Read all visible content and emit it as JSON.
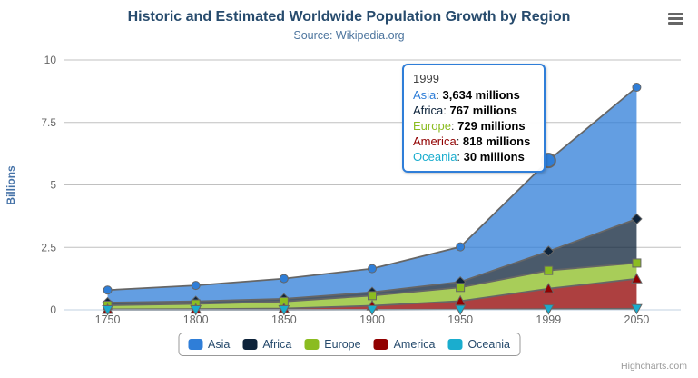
{
  "chart_data": {
    "type": "area",
    "stacking": "normal",
    "title": "Historic and Estimated Worldwide Population Growth by Region",
    "subtitle": "Source: Wikipedia.org",
    "xlabel": "",
    "ylabel": "Billions",
    "unit": "millions",
    "categories": [
      "1750",
      "1800",
      "1850",
      "1900",
      "1950",
      "1999",
      "2050"
    ],
    "ylim": [
      0,
      10
    ],
    "yticks": [
      0,
      2.5,
      5,
      7.5,
      10
    ],
    "ytick_labels": [
      "0",
      "2.5",
      "5",
      "7.5",
      "10"
    ],
    "grid": true,
    "legend_position": "bottom",
    "series": [
      {
        "name": "Asia",
        "color": "#2f7ed8",
        "marker": "circle",
        "values": [
          502,
          635,
          809,
          947,
          1402,
          3634,
          5268
        ]
      },
      {
        "name": "Africa",
        "color": "#0d233a",
        "marker": "diamond",
        "values": [
          106,
          107,
          111,
          133,
          221,
          767,
          1766
        ]
      },
      {
        "name": "Europe",
        "color": "#8bbc21",
        "marker": "square",
        "values": [
          163,
          203,
          276,
          408,
          547,
          729,
          628
        ]
      },
      {
        "name": "America",
        "color": "#910000",
        "marker": "triangle",
        "values": [
          18,
          31,
          54,
          156,
          339,
          818,
          1201
        ]
      },
      {
        "name": "Oceania",
        "color": "#1aadce",
        "marker": "triangle-down",
        "values": [
          2,
          2,
          2,
          6,
          13,
          30,
          46
        ]
      }
    ],
    "tooltip": {
      "header": "1999",
      "category_index": 5,
      "hovered_series": "Asia",
      "rows": [
        {
          "name": "Asia",
          "value": "3,634 millions"
        },
        {
          "name": "Africa",
          "value": "767 millions"
        },
        {
          "name": "Europe",
          "value": "729 millions"
        },
        {
          "name": "America",
          "value": "818 millions"
        },
        {
          "name": "Oceania",
          "value": "30 millions"
        }
      ]
    },
    "credits": "Highcharts.com",
    "colors": {
      "title": "#274b6d",
      "subtitle": "#4d759e",
      "axis_title": "#4572a7",
      "axis_labels": "#666666",
      "grid_line": "#c0c0c0",
      "axis_line": "#c0d0e0",
      "series_outline": "#666666",
      "legend_border": "#999999",
      "legend_text": "#274b6d",
      "fill_opacity": 0.75
    },
    "icons": {
      "context_menu_icon": "hamburger-menu"
    }
  }
}
